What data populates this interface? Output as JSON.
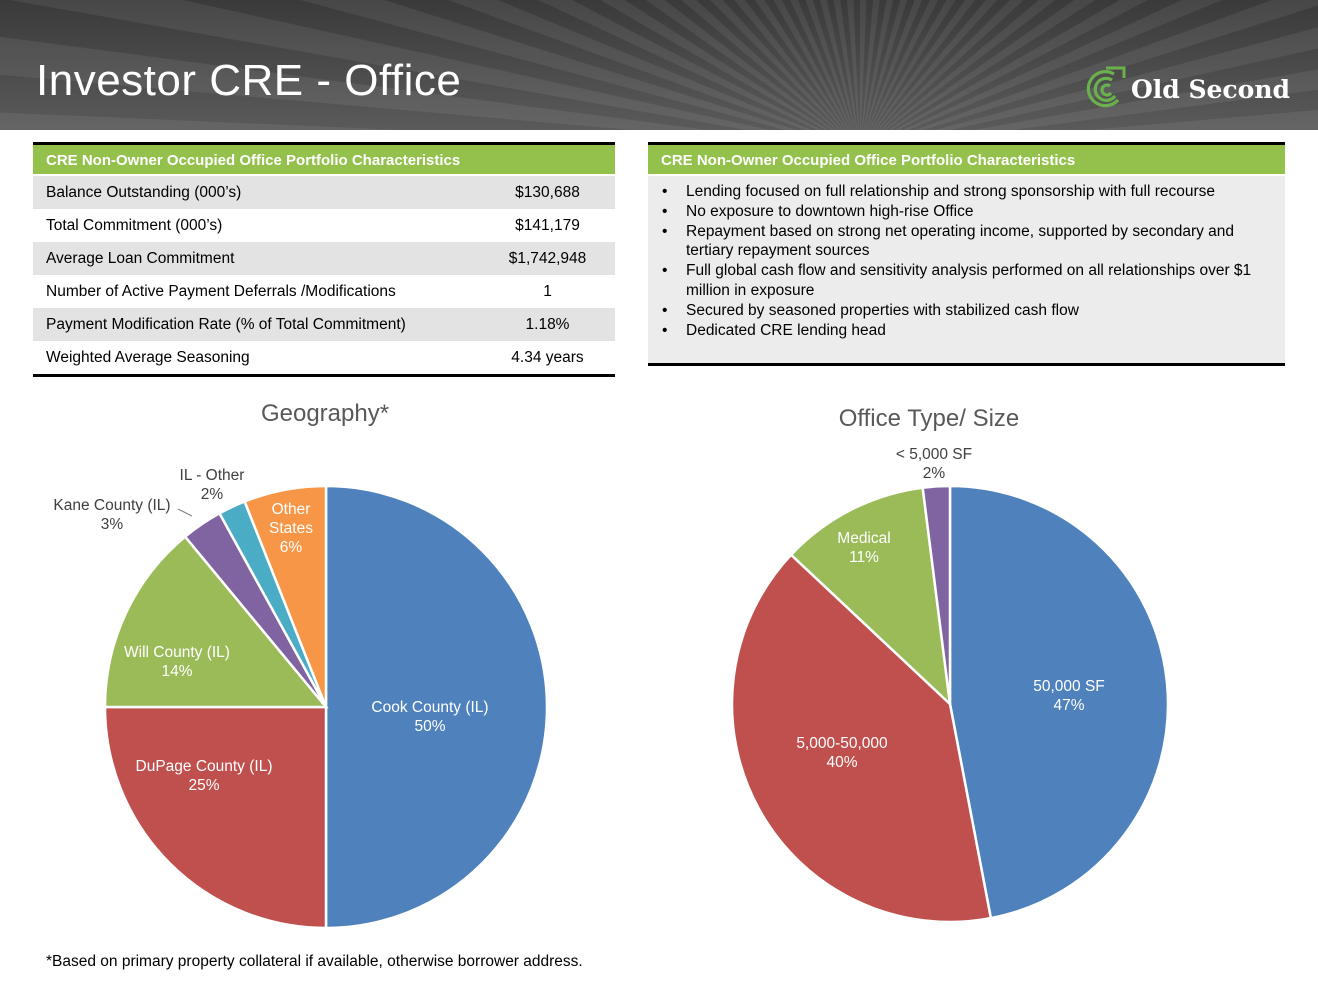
{
  "page": {
    "title": "Investor CRE - Office"
  },
  "logo": {
    "text": "Old Second",
    "icon": "old-second-swirl-logo",
    "color": "#6ab04c"
  },
  "colors": {
    "header_green": "#94c14b",
    "row_shade": "#e3e3e3",
    "panel_bg": "#ececec"
  },
  "table": {
    "header": "CRE  Non-Owner Occupied Office Portfolio Characteristics",
    "rows": [
      {
        "label": "Balance Outstanding (000’s)",
        "value": "$130,688"
      },
      {
        "label": "Total Commitment (000’s)",
        "value": "$141,179"
      },
      {
        "label": "Average  Loan Commitment",
        "value": "$1,742,948"
      },
      {
        "label": "Number of Active  Payment Deferrals /Modifications",
        "value": "1"
      },
      {
        "label": "Payment Modification Rate (% of Total Commitment)",
        "value": "1.18%"
      },
      {
        "label": "Weighted Average  Seasoning",
        "value": "4.34 years"
      }
    ]
  },
  "characteristics": {
    "header": "CRE  Non-Owner Occupied Office Portfolio Characteristics",
    "bullets": [
      "Lending focused on full relationship and strong sponsorship with full recourse",
      "No  exposure to downtown high-rise Office",
      "Repayment based on strong net operating income, supported by secondary and tertiary  repayment sources",
      "Full global cash flow and sensitivity analysis performed on all relationships over $1 million in exposure",
      "Secured by  seasoned properties with stabilized cash flow",
      "Dedicated CRE lending head"
    ]
  },
  "chart_data": [
    {
      "type": "pie",
      "title": "Geography*",
      "slices": [
        {
          "name": "Cook County (IL)",
          "value": 50,
          "label": "50%",
          "color": "#4f81bd"
        },
        {
          "name": "DuPage County (IL)",
          "value": 25,
          "label": "25%",
          "color": "#c0504d"
        },
        {
          "name": "Will County (IL)",
          "value": 14,
          "label": "14%",
          "color": "#9bbb59"
        },
        {
          "name": "Kane County (IL)",
          "value": 3,
          "label": "3%",
          "color": "#8064a2"
        },
        {
          "name": "IL - Other",
          "value": 2,
          "label": "2%",
          "color": "#4bacc6"
        },
        {
          "name": "Other States",
          "value": 6,
          "label": "6%",
          "color": "#f79646"
        }
      ]
    },
    {
      "type": "pie",
      "title": "Office Type/ Size",
      "slices": [
        {
          "name": "50,000 SF",
          "value": 47,
          "label": "47%",
          "color": "#4f81bd"
        },
        {
          "name": "5,000-50,000",
          "value": 40,
          "label": "40%",
          "color": "#c0504d"
        },
        {
          "name": "Medical",
          "value": 11,
          "label": "11%",
          "color": "#9bbb59"
        },
        {
          "name": "< 5,000 SF",
          "value": 2,
          "label": "2%",
          "color": "#8064a2"
        }
      ]
    }
  ],
  "footnote": "*Based on primary property collateral if available, otherwise borrower address."
}
